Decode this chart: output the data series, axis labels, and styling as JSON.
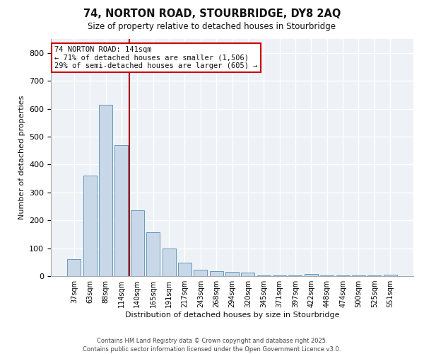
{
  "title_line1": "74, NORTON ROAD, STOURBRIDGE, DY8 2AQ",
  "title_line2": "Size of property relative to detached houses in Stourbridge",
  "xlabel": "Distribution of detached houses by size in Stourbridge",
  "ylabel": "Number of detached properties",
  "categories": [
    "37sqm",
    "63sqm",
    "88sqm",
    "114sqm",
    "140sqm",
    "165sqm",
    "191sqm",
    "217sqm",
    "243sqm",
    "268sqm",
    "294sqm",
    "320sqm",
    "345sqm",
    "371sqm",
    "397sqm",
    "422sqm",
    "448sqm",
    "474sqm",
    "500sqm",
    "525sqm",
    "551sqm"
  ],
  "values": [
    60,
    360,
    615,
    470,
    235,
    158,
    98,
    47,
    22,
    18,
    15,
    12,
    2,
    2,
    2,
    8,
    2,
    2,
    2,
    2,
    5
  ],
  "bar_color": "#c8d8e8",
  "bar_edge_color": "#6699bb",
  "property_line_color": "#aa0000",
  "annotation_text": "74 NORTON ROAD: 141sqm\n← 71% of detached houses are smaller (1,506)\n29% of semi-detached houses are larger (605) →",
  "annotation_box_color": "#ffffff",
  "annotation_box_edge_color": "#cc0000",
  "ylim": [
    0,
    850
  ],
  "yticks": [
    0,
    100,
    200,
    300,
    400,
    500,
    600,
    700,
    800
  ],
  "footer_line1": "Contains HM Land Registry data © Crown copyright and database right 2025.",
  "footer_line2": "Contains public sector information licensed under the Open Government Licence v3.0.",
  "background_color": "#eef2f6",
  "grid_color": "#ffffff",
  "fig_bg_color": "#ffffff"
}
